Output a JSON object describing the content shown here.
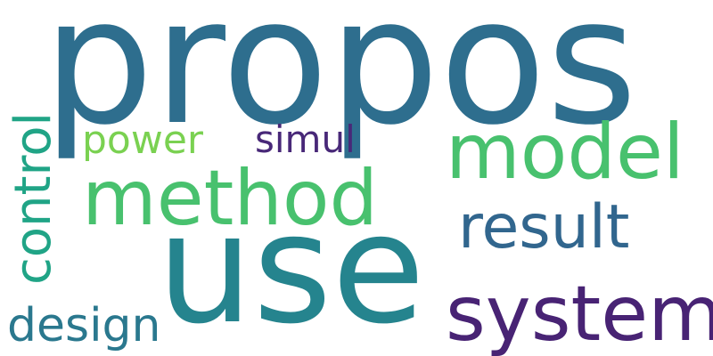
{
  "words": {
    "propos": {
      "text": "propos",
      "color": "#2e6e8e"
    },
    "use": {
      "text": "use",
      "color": "#25848e"
    },
    "system": {
      "text": "system",
      "color": "#482374"
    },
    "method": {
      "text": "method",
      "color": "#48c16e"
    },
    "model": {
      "text": "model",
      "color": "#48c16e"
    },
    "result": {
      "text": "result",
      "color": "#31668e"
    },
    "control": {
      "text": "control",
      "color": "#20a486"
    },
    "design": {
      "text": "design",
      "color": "#2a788e"
    },
    "power": {
      "text": "power",
      "color": "#7ad151"
    },
    "simul": {
      "text": "simul",
      "color": "#482878"
    }
  }
}
